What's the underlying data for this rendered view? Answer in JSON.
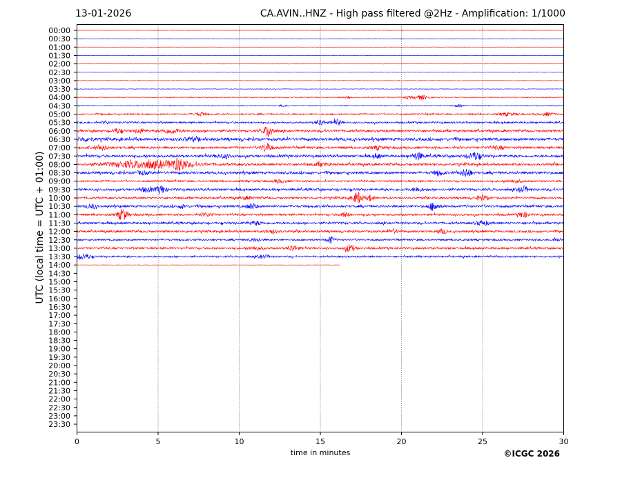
{
  "header": {
    "date": "13-01-2026",
    "title": "CA.AVIN..HNZ - High pass filtered @2Hz - Amplification: 1/1000"
  },
  "footer": {
    "copyright": "©ICGC 2026"
  },
  "chart_data": {
    "type": "line",
    "title": "CA.AVIN..HNZ - High pass filtered @2Hz - Amplification: 1/1000",
    "xlabel": "time in minutes",
    "ylabel": "UTC (local time = UTC + 01:00)",
    "xlim": [
      0,
      30
    ],
    "x_ticks": [
      "0",
      "5",
      "10",
      "15",
      "20",
      "25",
      "30"
    ],
    "grid": "vertical dotted at 5,10,15,20,25",
    "y_ticks": [
      "00:00",
      "00:30",
      "01:00",
      "01:30",
      "02:00",
      "02:30",
      "03:00",
      "03:30",
      "04:00",
      "04:30",
      "05:00",
      "05:30",
      "06:00",
      "06:30",
      "07:00",
      "07:30",
      "08:00",
      "08:30",
      "09:00",
      "09:30",
      "10:00",
      "10:30",
      "11:00",
      "11:30",
      "12:00",
      "12:30",
      "13:00",
      "13:30",
      "14:00",
      "14:30",
      "15:00",
      "15:30",
      "16:00",
      "16:30",
      "17:00",
      "17:30",
      "18:00",
      "18:30",
      "19:00",
      "19:30",
      "20:00",
      "20:30",
      "21:00",
      "21:30",
      "22:00",
      "22:30",
      "23:00",
      "23:30"
    ],
    "colors": {
      "odd_hour_trace": "#ff0000",
      "half_hour_trace": "#0000ff"
    },
    "traces": [
      {
        "label": "00:00",
        "noise": 0.3,
        "end": 30,
        "events": []
      },
      {
        "label": "00:30",
        "noise": 0.3,
        "end": 30,
        "events": []
      },
      {
        "label": "01:00",
        "noise": 0.3,
        "end": 30,
        "events": []
      },
      {
        "label": "01:30",
        "noise": 0.3,
        "end": 30,
        "events": []
      },
      {
        "label": "02:00",
        "noise": 0.3,
        "end": 30,
        "events": []
      },
      {
        "label": "02:30",
        "noise": 0.3,
        "end": 30,
        "events": []
      },
      {
        "label": "03:00",
        "noise": 0.3,
        "end": 30,
        "events": []
      },
      {
        "label": "03:30",
        "noise": 0.4,
        "end": 30,
        "events": []
      },
      {
        "label": "04:00",
        "noise": 0.6,
        "end": 30,
        "events": [
          [
            16.7,
            2,
            0.2
          ],
          [
            21.3,
            3,
            0.4
          ],
          [
            20.5,
            1.5,
            0.5
          ]
        ]
      },
      {
        "label": "04:30",
        "noise": 0.6,
        "end": 30,
        "events": [
          [
            12.7,
            1.5,
            0.2
          ],
          [
            23.5,
            1.5,
            0.3
          ]
        ]
      },
      {
        "label": "05:00",
        "noise": 1.0,
        "end": 30,
        "events": [
          [
            7.6,
            2,
            0.4
          ],
          [
            26.5,
            2,
            0.5
          ],
          [
            29,
            2,
            0.4
          ]
        ]
      },
      {
        "label": "05:30",
        "noise": 1.2,
        "end": 30,
        "events": [
          [
            15.0,
            4,
            0.3
          ],
          [
            16.0,
            4,
            0.3
          ],
          [
            1.8,
            2,
            0.2
          ]
        ]
      },
      {
        "label": "06:00",
        "noise": 1.6,
        "end": 30,
        "events": [
          [
            11.8,
            8,
            0.3
          ],
          [
            2.5,
            3,
            0.3
          ],
          [
            3.9,
            3,
            0.3
          ],
          [
            5.8,
            3,
            0.5
          ]
        ]
      },
      {
        "label": "06:30",
        "noise": 2.0,
        "end": 30,
        "events": [
          [
            0.5,
            2,
            0.5
          ],
          [
            7,
            2,
            0.5
          ]
        ]
      },
      {
        "label": "07:00",
        "noise": 1.6,
        "end": 30,
        "events": [
          [
            11.7,
            6,
            0.3
          ],
          [
            1.5,
            3,
            0.4
          ],
          [
            18.5,
            2,
            0.3
          ],
          [
            26,
            2,
            0.4
          ]
        ]
      },
      {
        "label": "07:30",
        "noise": 1.8,
        "end": 30,
        "events": [
          [
            21.0,
            5,
            0.3
          ],
          [
            24.5,
            5,
            0.4
          ],
          [
            18.5,
            3,
            0.2
          ],
          [
            9,
            2,
            0.5
          ]
        ]
      },
      {
        "label": "08:00",
        "noise": 1.6,
        "end": 30,
        "events": [
          [
            4.5,
            5,
            2.5
          ],
          [
            6.3,
            6,
            0.4
          ],
          [
            15,
            2,
            0.5
          ]
        ]
      },
      {
        "label": "08:30",
        "noise": 1.8,
        "end": 30,
        "events": [
          [
            24.0,
            6,
            0.3
          ],
          [
            22.3,
            3,
            0.3
          ],
          [
            4,
            2,
            0.4
          ]
        ]
      },
      {
        "label": "09:00",
        "noise": 1.2,
        "end": 30,
        "events": [
          [
            12.5,
            2,
            0.4
          ],
          [
            27,
            2,
            0.5
          ]
        ]
      },
      {
        "label": "09:30",
        "noise": 1.6,
        "end": 30,
        "events": [
          [
            5.2,
            5,
            0.3
          ],
          [
            4.3,
            3,
            0.4
          ],
          [
            27.5,
            4,
            0.3
          ],
          [
            21,
            3,
            0.3
          ]
        ]
      },
      {
        "label": "10:00",
        "noise": 1.4,
        "end": 30,
        "events": [
          [
            17.3,
            8,
            0.3
          ],
          [
            18.1,
            4,
            0.2
          ],
          [
            10.5,
            2,
            0.3
          ],
          [
            25,
            3,
            0.4
          ]
        ]
      },
      {
        "label": "10:30",
        "noise": 1.6,
        "end": 30,
        "events": [
          [
            22.0,
            6,
            0.3
          ],
          [
            10.8,
            4,
            0.3
          ],
          [
            0.9,
            3,
            0.3
          ],
          [
            6.5,
            2,
            0.3
          ]
        ]
      },
      {
        "label": "11:00",
        "noise": 1.4,
        "end": 30,
        "events": [
          [
            2.8,
            8,
            0.3
          ],
          [
            27.5,
            4,
            0.3
          ],
          [
            16.5,
            3,
            0.3
          ],
          [
            8,
            2,
            0.4
          ]
        ]
      },
      {
        "label": "11:30",
        "noise": 1.6,
        "end": 30,
        "events": [
          [
            25,
            3,
            0.4
          ],
          [
            11,
            2,
            0.5
          ]
        ]
      },
      {
        "label": "12:00",
        "noise": 1.4,
        "end": 30,
        "events": [
          [
            19.5,
            3,
            0.3
          ],
          [
            22.5,
            3,
            0.3
          ],
          [
            12,
            2,
            0.4
          ]
        ]
      },
      {
        "label": "12:30",
        "noise": 1.2,
        "end": 30,
        "events": [
          [
            15.6,
            5,
            0.2
          ],
          [
            29.5,
            2,
            0.2
          ],
          [
            11,
            2,
            0.4
          ]
        ]
      },
      {
        "label": "13:00",
        "noise": 1.4,
        "end": 30,
        "events": [
          [
            16.8,
            5,
            0.3
          ],
          [
            13.3,
            4,
            0.3
          ],
          [
            11,
            2,
            0.4
          ]
        ]
      },
      {
        "label": "13:30",
        "noise": 1.2,
        "end": 30,
        "events": [
          [
            0.4,
            4,
            0.4
          ],
          [
            11.5,
            2,
            0.4
          ]
        ]
      },
      {
        "label": "14:00",
        "noise": 0.3,
        "end": 16.2,
        "events": []
      }
    ]
  }
}
